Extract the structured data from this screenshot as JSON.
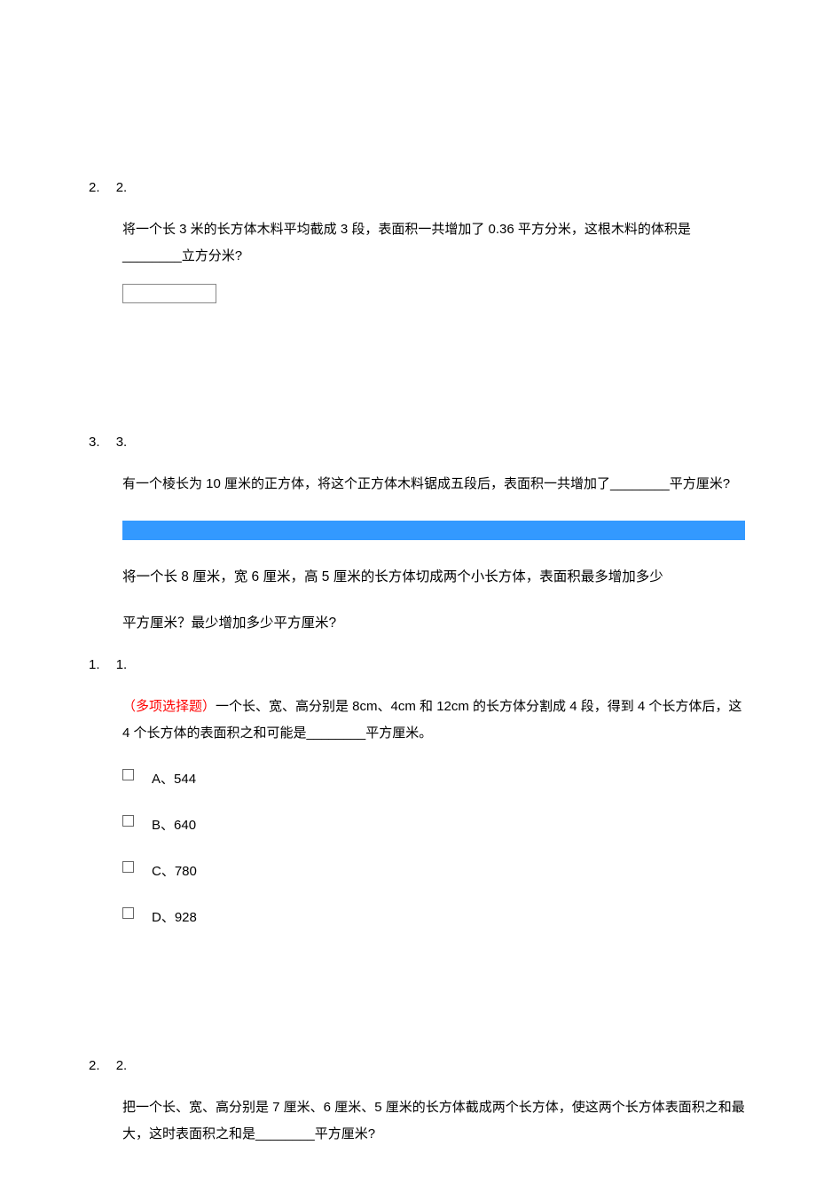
{
  "questions": {
    "q2_top": {
      "number": "2.",
      "label": "2.",
      "content": "将一个长 3 米的长方体木料平均截成 3 段，表面积一共增加了 0.36 平方分米，这根木料的体积是________立方分米?"
    },
    "q3": {
      "number": "3.",
      "label": "3.",
      "content": "有一个棱长为 10 厘米的正方体，将这个正方体木料锯成五段后，表面积一共增加了________平方厘米?"
    },
    "highlighted": {
      "line1": "将一个长 8 厘米，宽 6 厘米，高 5 厘米的长方体切成两个小长方体，表面积最多增加多少",
      "line2": "平方厘米？最少增加多少平方厘米?"
    },
    "q1_multi": {
      "number": "1.",
      "label": "1.",
      "prefix": "（多项选择题）",
      "content": "一个长、宽、高分别是 8cm、4cm 和 12cm 的长方体分割成 4 段，得到 4 个长方体后，这 4 个长方体的表面积之和可能是________平方厘米。",
      "options": {
        "a": "A、544",
        "b": "B、640",
        "c": "C、780",
        "d": "D、928"
      }
    },
    "q2_bottom": {
      "number": "2.",
      "label": "2.",
      "content": "把一个长、宽、高分别是 7 厘米、6 厘米、5 厘米的长方体截成两个长方体，使这两个长方体表面积之和最大，这时表面积之和是________平方厘米?"
    }
  },
  "styles": {
    "highlight_color": "#3399ff",
    "red_color": "#ff0000",
    "background_color": "#ffffff",
    "text_color": "#000000"
  }
}
